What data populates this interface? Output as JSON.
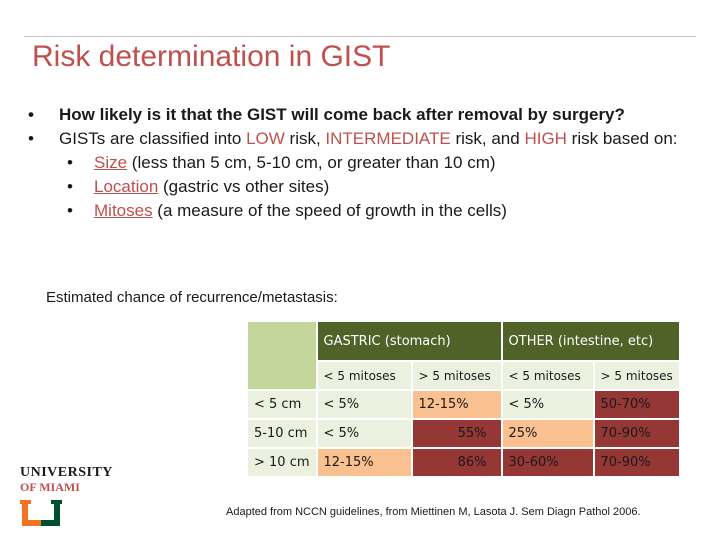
{
  "slide": {
    "title": "Risk determination in GIST",
    "bullet1": {
      "dot": "•",
      "text": "How likely is it that the GIST will come back after removal by surgery?"
    },
    "bullet2": {
      "dot": "•",
      "part1": "GISTs are classified into ",
      "low": "LOW",
      "part2": " risk, ",
      "intermediate": "INTERMEDIATE",
      "part3": " risk, and ",
      "high": "HIGH",
      "part4": " risk based on:"
    },
    "sub_bullets": [
      {
        "dot": "•",
        "keyword": "Size",
        "rest": " (less than 5 cm, 5-10 cm, or greater than 10 cm)"
      },
      {
        "dot": "•",
        "keyword": "Location",
        "rest": " (gastric vs other sites)"
      },
      {
        "dot": "•",
        "keyword": "Mitoses",
        "rest": " (a measure of the speed of growth in the cells)"
      }
    ],
    "table_caption": "Estimated chance of recurrence/metastasis:"
  },
  "table": {
    "group_headers": [
      "GASTRIC (stomach)",
      "OTHER (intestine, etc)"
    ],
    "sub_headers": [
      "< 5 mitoses",
      "> 5 mitoses",
      "< 5 mitoses",
      "> 5 mitoses"
    ],
    "rows": [
      {
        "label": "< 5 cm",
        "cells": [
          "< 5%",
          "12-15%",
          "< 5%",
          "50-70%"
        ]
      },
      {
        "label": "5-10 cm",
        "cells": [
          "< 5%",
          "55%",
          "25%",
          "70-90%"
        ]
      },
      {
        "label": "> 10 cm",
        "cells": [
          "12-15%",
          "86%",
          "30-60%",
          "70-90%"
        ]
      }
    ]
  },
  "logo": {
    "line1": "UNIVERSITY",
    "line2": "OF MIAMI",
    "colors": {
      "orange": "#f47321",
      "green": "#005030"
    }
  },
  "source": "Adapted from NCCN guidelines, from Miettinen M, Lasota J. Sem Diagn Pathol 2006.",
  "colors": {
    "title": "#c0504d",
    "low": "#ebf1de",
    "intermediate": "#fac090",
    "high": "#953735",
    "header": "#4f6228"
  }
}
